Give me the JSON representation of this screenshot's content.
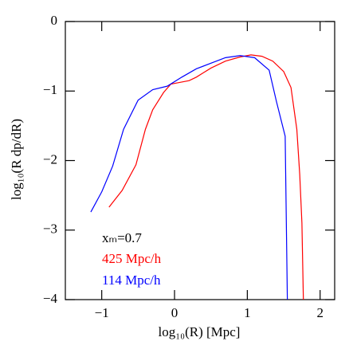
{
  "chart_data": {
    "type": "line",
    "xlabel": "log₁₀(R) [Mpc]",
    "ylabel": "log₁₀(R dp/dR)",
    "annotation": "xₘ=0.7",
    "xlim": [
      -1.5,
      2.2
    ],
    "ylim": [
      -4,
      0
    ],
    "xticks": [
      {
        "value": -1,
        "label": "−1"
      },
      0,
      1,
      2
    ],
    "yticks": [
      {
        "value": -4,
        "label": "−4"
      },
      {
        "value": -3,
        "label": "−3"
      },
      {
        "value": -2,
        "label": "−2"
      },
      {
        "value": -1,
        "label": "−1"
      },
      0
    ],
    "series": [
      {
        "name": "425 Mpc/h",
        "color": "#ff0000",
        "x": [
          -0.9,
          -0.72,
          -0.53,
          -0.4,
          -0.3,
          -0.15,
          -0.05,
          0.1,
          0.2,
          0.3,
          0.5,
          0.7,
          0.9,
          1.05,
          1.2,
          1.35,
          1.5,
          1.6,
          1.68,
          1.72,
          1.75,
          1.77
        ],
        "values": [
          -2.67,
          -2.43,
          -2.06,
          -1.55,
          -1.27,
          -1.02,
          -0.9,
          -0.87,
          -0.85,
          -0.8,
          -0.67,
          -0.57,
          -0.51,
          -0.48,
          -0.5,
          -0.57,
          -0.72,
          -0.95,
          -1.55,
          -2.2,
          -2.9,
          -4
        ]
      },
      {
        "name": "114 Mpc/h",
        "color": "#0000ff",
        "x": [
          -1.15,
          -1.0,
          -0.85,
          -0.7,
          -0.5,
          -0.3,
          -0.1,
          0.1,
          0.3,
          0.5,
          0.7,
          0.9,
          1.1,
          1.3,
          1.4,
          1.52,
          1.55
        ],
        "values": [
          -2.74,
          -2.45,
          -2.08,
          -1.55,
          -1.13,
          -0.98,
          -0.93,
          -0.8,
          -0.68,
          -0.6,
          -0.52,
          -0.49,
          -0.52,
          -0.7,
          -1.15,
          -1.65,
          -4
        ]
      }
    ]
  }
}
